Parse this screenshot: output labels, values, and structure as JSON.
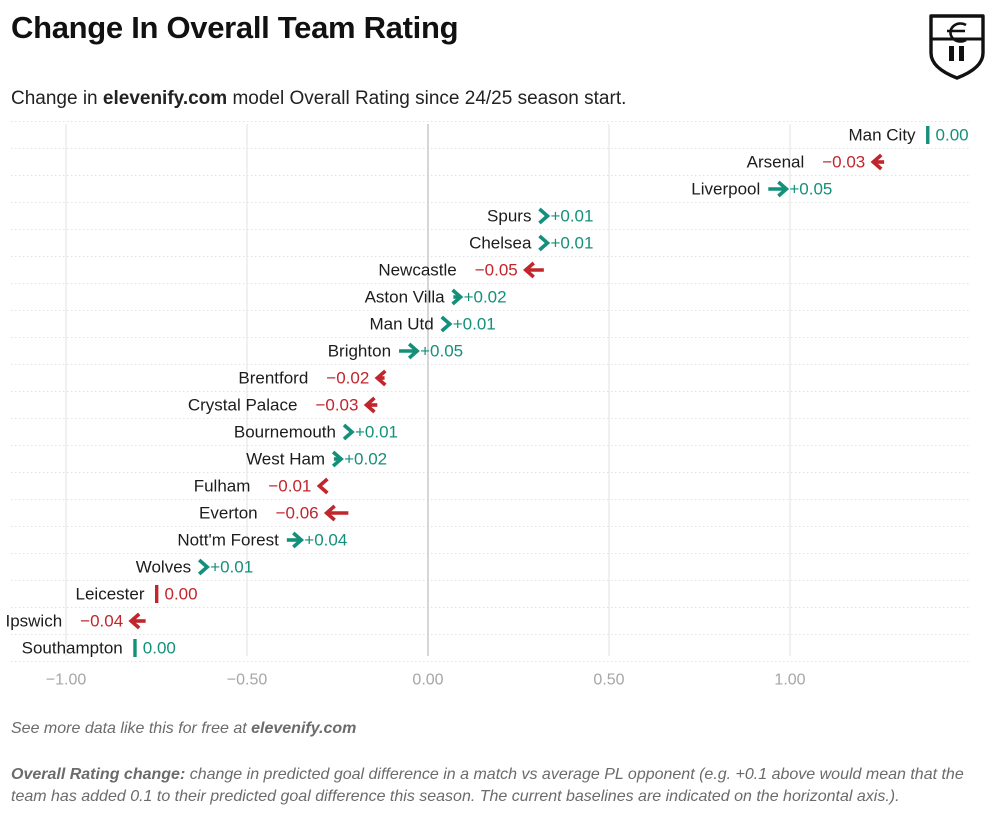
{
  "header": {
    "title": "Change In Overall Team Rating",
    "subtitle_pre": "Change in ",
    "subtitle_brand": "elevenify.com",
    "subtitle_post": " model Overall Rating since 24/25 season start."
  },
  "footer": {
    "promo_pre": "See more data like this for free at ",
    "promo_brand": "elevenify.com",
    "note_label": "Overall Rating change:",
    "note_text": " change in predicted goal difference in a match vs average PL opponent (e.g. +0.1 above would mean that the team has added 0.1 to their predicted goal difference this season. The current baselines are indicated on the horizontal axis.)."
  },
  "colors": {
    "increase": "#14907a",
    "decrease": "#c0262c",
    "no_change_positive": "#14907a",
    "no_change_negative": "#c0262c",
    "axis_zero": "#c4c4c4",
    "grid": "#e2e2e2",
    "tick_label": "#a6a6a6"
  },
  "chart_data": {
    "type": "scatter",
    "title": "Change In Overall Team Rating",
    "xlabel": "",
    "ylabel": "",
    "xlim": [
      -1.1,
      1.5
    ],
    "x_ticks": [
      -1.0,
      -0.5,
      0.0,
      0.5,
      1.0
    ],
    "x_tick_labels": [
      "−1.00",
      "−0.50",
      "0.00",
      "0.50",
      "1.00"
    ],
    "grid": true,
    "legend": "none",
    "teams": [
      {
        "name": "Man City",
        "rating": 1.38,
        "change": 0.0,
        "label": "0.00",
        "dir": "flat-pos"
      },
      {
        "name": "Arsenal",
        "rating": 1.23,
        "change": -0.03,
        "label": "−0.03",
        "dir": "down"
      },
      {
        "name": "Liverpool",
        "rating": 0.99,
        "change": 0.05,
        "label": "+0.05",
        "dir": "up"
      },
      {
        "name": "Spurs",
        "rating": 0.33,
        "change": 0.01,
        "label": "+0.01",
        "dir": "up"
      },
      {
        "name": "Chelsea",
        "rating": 0.33,
        "change": 0.01,
        "label": "+0.01",
        "dir": "up"
      },
      {
        "name": "Newcastle",
        "rating": 0.27,
        "change": -0.05,
        "label": "−0.05",
        "dir": "down"
      },
      {
        "name": "Aston Villa",
        "rating": 0.09,
        "change": 0.02,
        "label": "+0.02",
        "dir": "up"
      },
      {
        "name": "Man Utd",
        "rating": 0.06,
        "change": 0.01,
        "label": "+0.01",
        "dir": "up"
      },
      {
        "name": "Brighton",
        "rating": -0.03,
        "change": 0.05,
        "label": "+0.05",
        "dir": "up"
      },
      {
        "name": "Brentford",
        "rating": -0.14,
        "change": -0.02,
        "label": "−0.02",
        "dir": "down"
      },
      {
        "name": "Crystal Palace",
        "rating": -0.17,
        "change": -0.03,
        "label": "−0.03",
        "dir": "down"
      },
      {
        "name": "Bournemouth",
        "rating": -0.21,
        "change": 0.01,
        "label": "+0.01",
        "dir": "up"
      },
      {
        "name": "West Ham",
        "rating": -0.24,
        "change": 0.02,
        "label": "+0.02",
        "dir": "up"
      },
      {
        "name": "Fulham",
        "rating": -0.3,
        "change": -0.01,
        "label": "−0.01",
        "dir": "down"
      },
      {
        "name": "Everton",
        "rating": -0.28,
        "change": -0.06,
        "label": "−0.06",
        "dir": "down"
      },
      {
        "name": "Nott'm Forest",
        "rating": -0.35,
        "change": 0.04,
        "label": "+0.04",
        "dir": "up"
      },
      {
        "name": "Wolves",
        "rating": -0.61,
        "change": 0.01,
        "label": "+0.01",
        "dir": "up"
      },
      {
        "name": "Leicester",
        "rating": -0.75,
        "change": 0.0,
        "label": "0.00",
        "dir": "flat-neg"
      },
      {
        "name": "Ipswich",
        "rating": -0.82,
        "change": -0.04,
        "label": "−0.04",
        "dir": "down"
      },
      {
        "name": "Southampton",
        "rating": -0.81,
        "change": 0.0,
        "label": "0.00",
        "dir": "flat-pos"
      }
    ]
  }
}
